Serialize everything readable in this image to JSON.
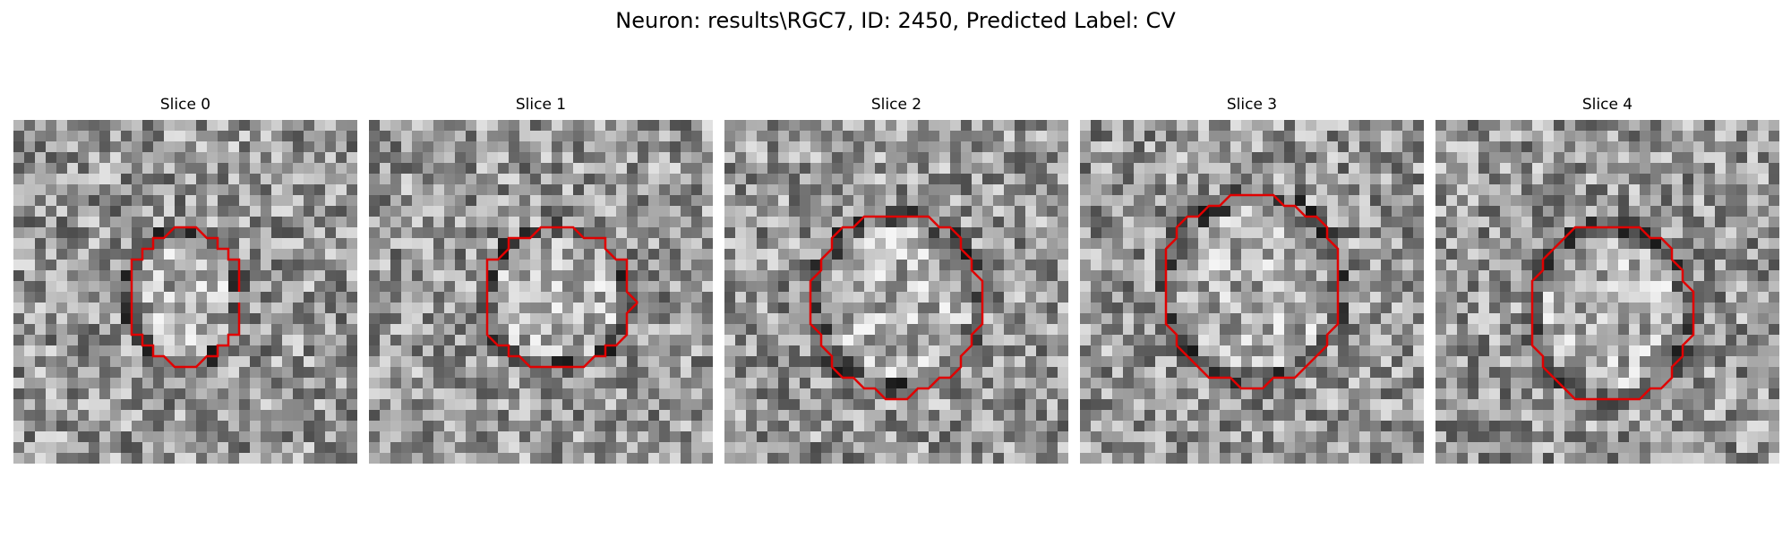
{
  "figure": {
    "title": "Neuron: results\\RGC7, ID: 2450, Predicted Label: CV"
  },
  "slices": [
    {
      "title": "Slice 0"
    },
    {
      "title": "Slice 1"
    },
    {
      "title": "Slice 2"
    },
    {
      "title": "Slice 3"
    },
    {
      "title": "Slice 4"
    }
  ],
  "colors": {
    "contour": "#e00000",
    "background": "#ffffff"
  }
}
